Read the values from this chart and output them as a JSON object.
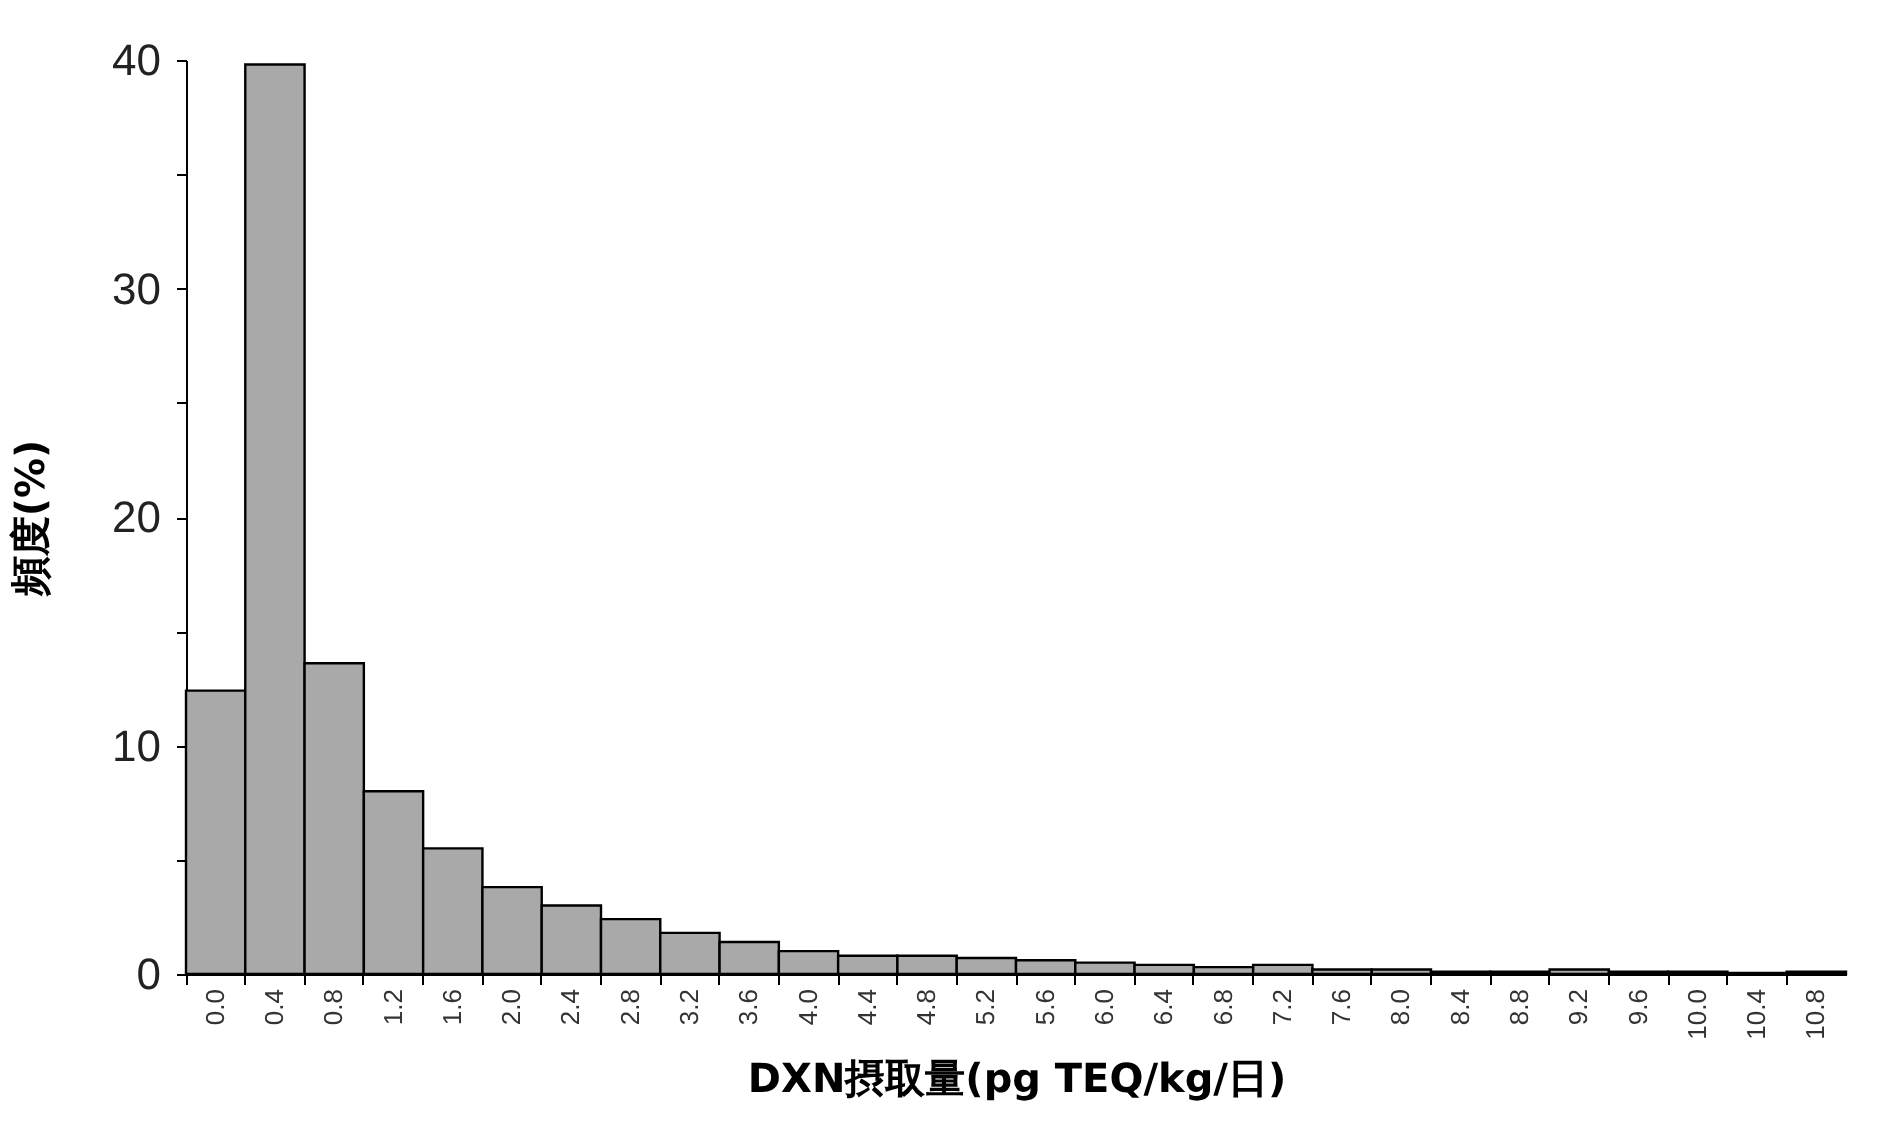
{
  "chart_data": {
    "type": "bar",
    "xlabel": "DXN摂取量(pg TEQ/kg/日)",
    "ylabel": "頻度(%)",
    "categories": [
      "0.0",
      "0.4",
      "0.8",
      "1.2",
      "1.6",
      "2.0",
      "2.4",
      "2.8",
      "3.2",
      "3.6",
      "4.0",
      "4.4",
      "4.8",
      "5.2",
      "5.6",
      "6.0",
      "6.4",
      "6.8",
      "7.2",
      "7.6",
      "8.0",
      "8.4",
      "8.8",
      "9.2",
      "9.6",
      "10.0",
      "10.4",
      "10.8"
    ],
    "values": [
      12.4,
      39.8,
      13.6,
      8.0,
      5.5,
      3.8,
      3.0,
      2.4,
      1.8,
      1.4,
      1.0,
      0.8,
      0.8,
      0.7,
      0.6,
      0.5,
      0.4,
      0.3,
      0.4,
      0.2,
      0.2,
      0.1,
      0.1,
      0.2,
      0.1,
      0.1,
      0.05,
      0.1
    ],
    "color": "#a9a9a9",
    "ylim": [
      0,
      40
    ],
    "yticks": [
      0,
      {
        "value": 5,
        "label": null
      },
      10,
      {
        "value": 15,
        "label": null
      },
      20,
      {
        "value": 25,
        "label": null
      },
      30,
      {
        "value": 35,
        "label": null
      },
      40
    ],
    "grid": false
  }
}
